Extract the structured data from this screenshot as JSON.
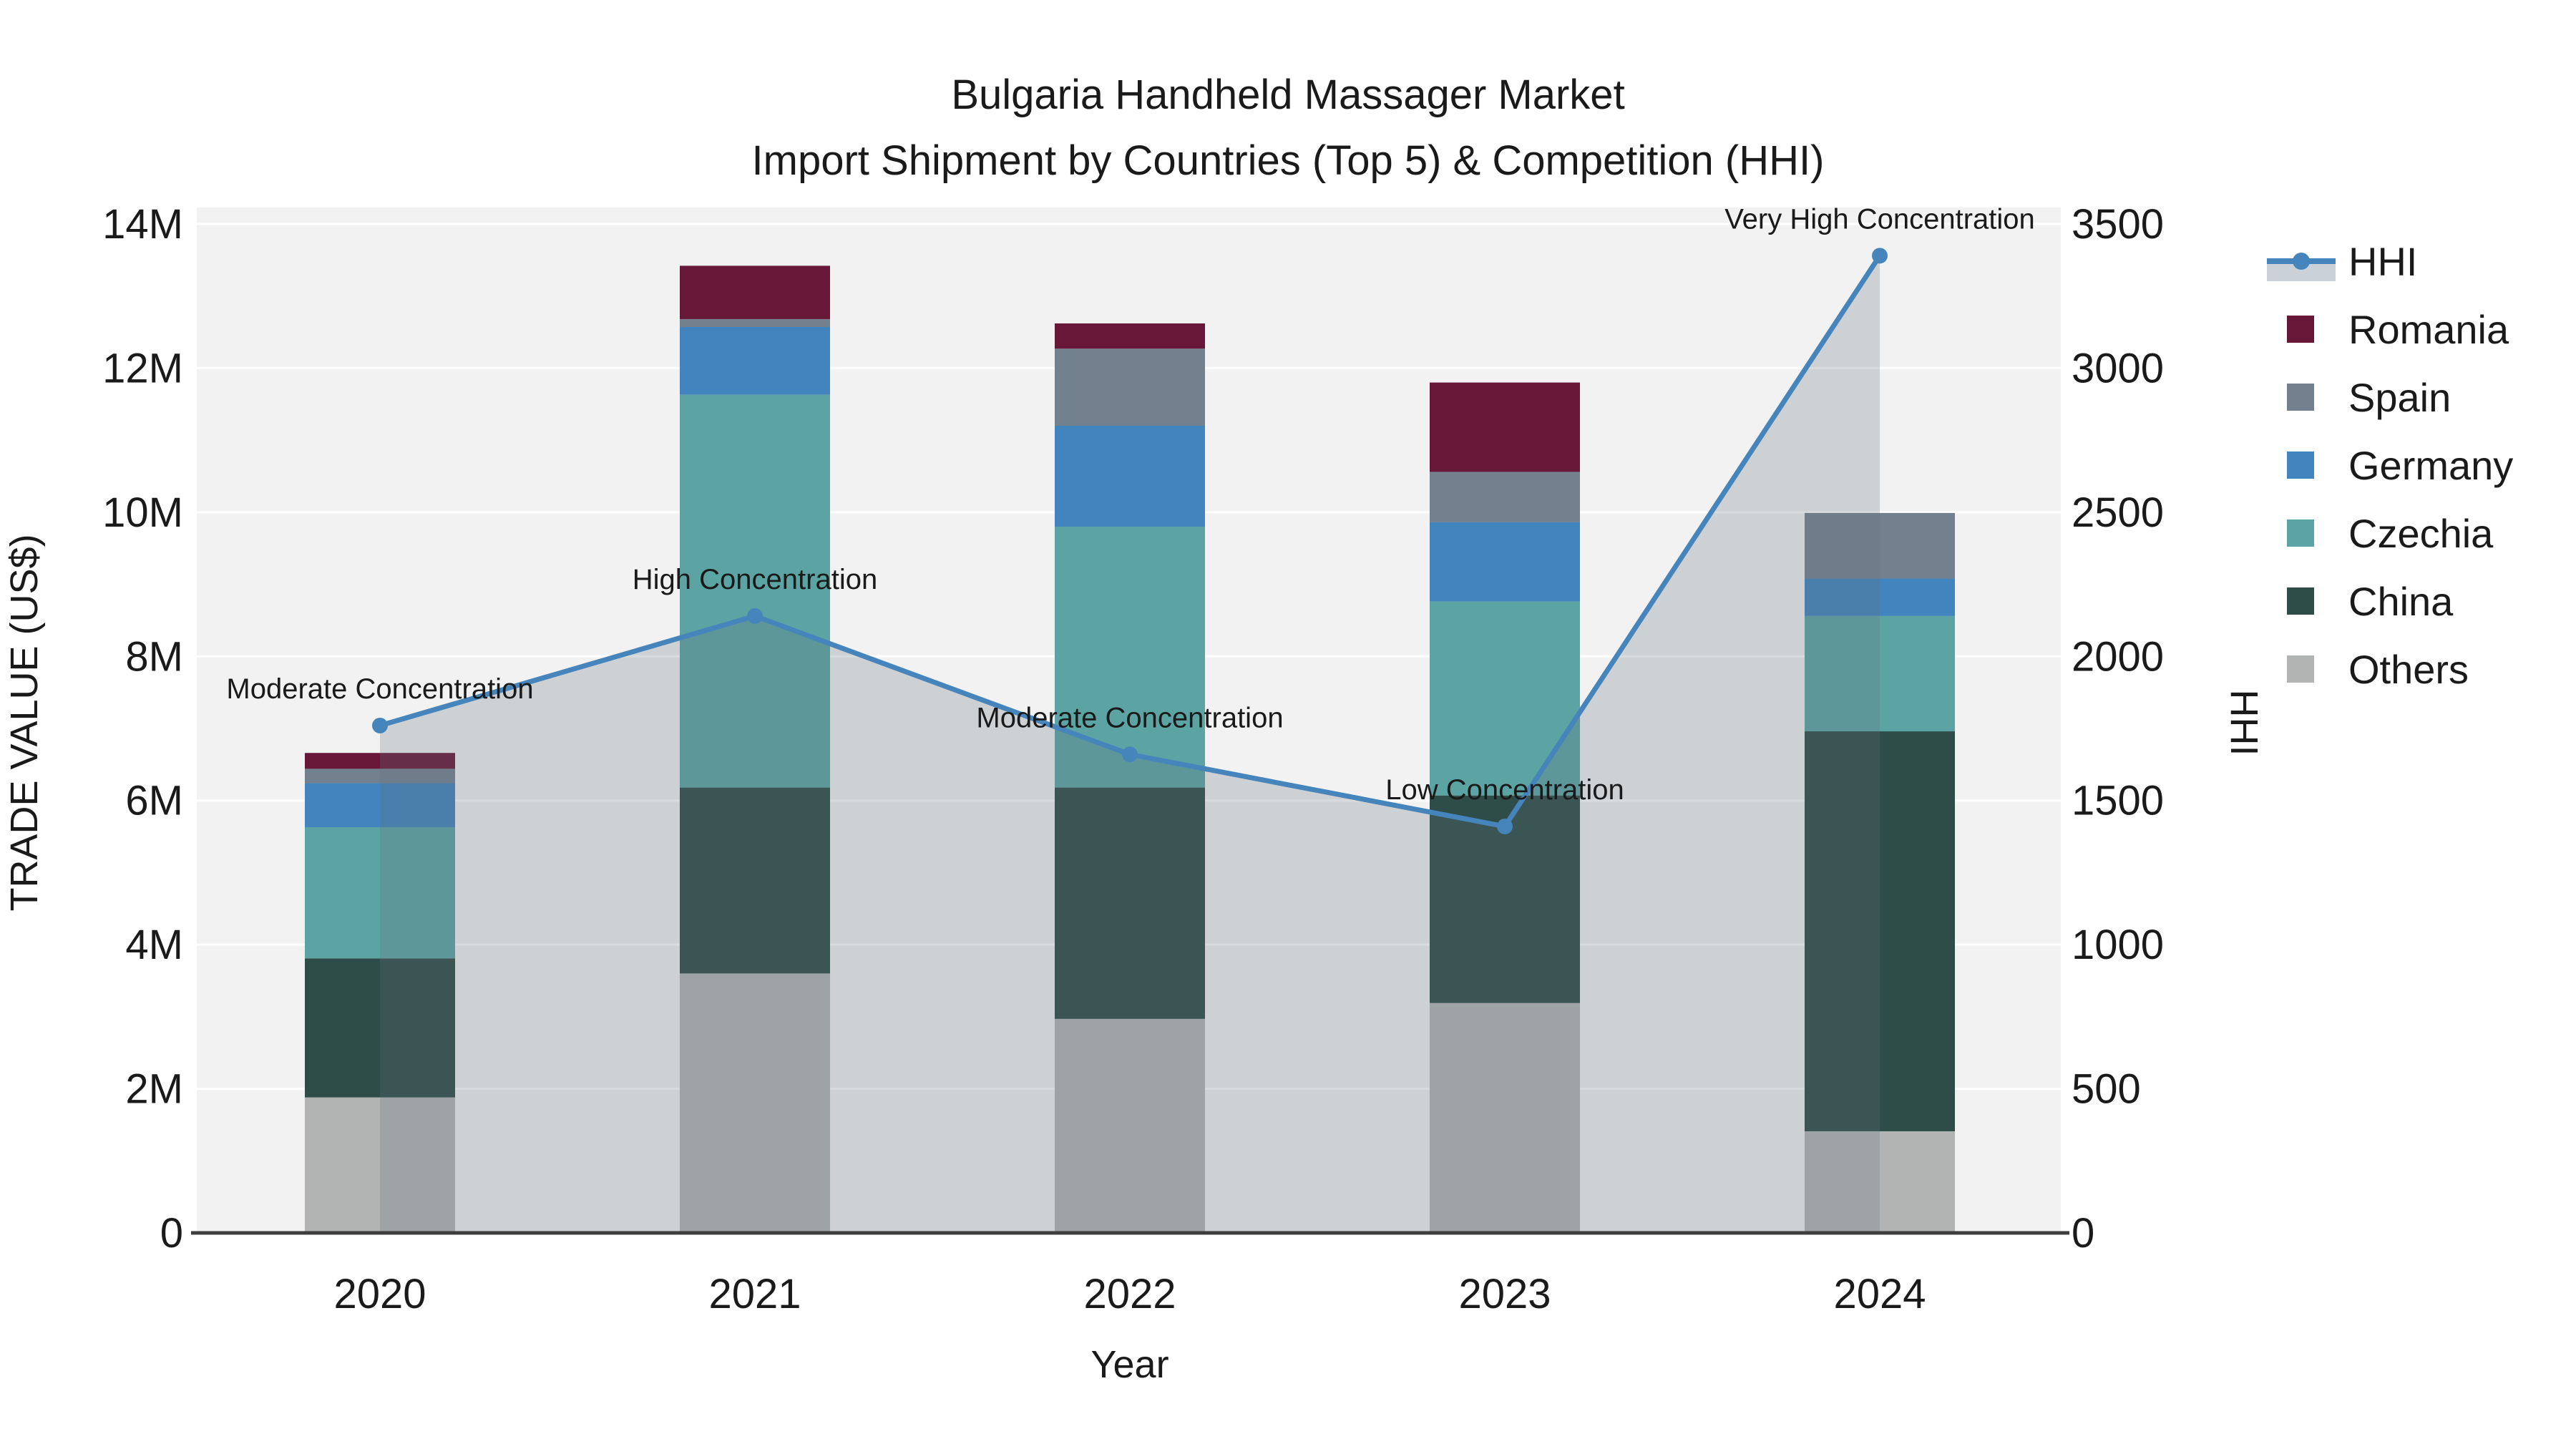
{
  "figure": {
    "title_line1": "Bulgaria Handheld Massager Market",
    "title_line2": "Import Shipment by Countries (Top 5) & Competition (HHI)"
  },
  "axes": {
    "x_title": "Year",
    "y_left_title": "TRADE VALUE (US$)",
    "y_right_title": "HHI",
    "y_left_ticks": [
      "0",
      "2M",
      "4M",
      "6M",
      "8M",
      "10M",
      "12M",
      "14M"
    ],
    "y_right_ticks": [
      "0",
      "500",
      "1000",
      "1500",
      "2000",
      "2500",
      "3000",
      "3500"
    ],
    "x_ticks": [
      "2020",
      "2021",
      "2022",
      "2023",
      "2024"
    ]
  },
  "legend": {
    "position": "right",
    "items": [
      {
        "label": "HHI",
        "type": "line-area",
        "color": "#4685bc",
        "area_color": "#cbd1d9"
      },
      {
        "label": "Romania",
        "type": "swatch",
        "color": "#671839"
      },
      {
        "label": "Spain",
        "type": "swatch",
        "color": "#73818f"
      },
      {
        "label": "Germany",
        "type": "swatch",
        "color": "#4284bd"
      },
      {
        "label": "Czechia",
        "type": "swatch",
        "color": "#5ca4a3"
      },
      {
        "label": "China",
        "type": "swatch",
        "color": "#2e4d48"
      },
      {
        "label": "Others",
        "type": "swatch",
        "color": "#b2b4b3"
      }
    ]
  },
  "chart_data": {
    "type": "combo-stacked-bar-and-line",
    "title": "Bulgaria Handheld Massager Market — Import Shipment by Countries (Top 5) & Competition (HHI)",
    "categories": [
      "2020",
      "2021",
      "2022",
      "2023",
      "2024"
    ],
    "unit_left": "US$ (millions)",
    "unit_right": "HHI index",
    "ylim_left_musd": [
      0,
      14
    ],
    "ylim_right_hhi": [
      0,
      3500
    ],
    "grid": true,
    "stack_order_bottom_to_top": [
      "Others",
      "China",
      "Czechia",
      "Germany",
      "Spain",
      "Romania"
    ],
    "series": [
      {
        "name": "Others",
        "color": "#b2b4b3",
        "values_musd": [
          1.88,
          3.6,
          2.97,
          3.19,
          1.41
        ]
      },
      {
        "name": "China",
        "color": "#2e4d48",
        "values_musd": [
          1.93,
          2.58,
          3.21,
          2.88,
          5.55
        ]
      },
      {
        "name": "Czechia",
        "color": "#5ca4a3",
        "values_musd": [
          1.82,
          5.45,
          3.62,
          2.69,
          1.6
        ]
      },
      {
        "name": "Germany",
        "color": "#4284bd",
        "values_musd": [
          0.61,
          0.94,
          1.4,
          1.1,
          0.52
        ]
      },
      {
        "name": "Spain",
        "color": "#73818f",
        "values_musd": [
          0.2,
          0.11,
          1.07,
          0.7,
          0.91
        ]
      },
      {
        "name": "Romania",
        "color": "#671839",
        "values_musd": [
          0.22,
          0.74,
          0.35,
          1.24,
          0.0
        ]
      }
    ],
    "bar_totals_musd": [
      6.66,
      13.42,
      12.62,
      11.8,
      9.99
    ],
    "hhi_line": {
      "name": "HHI",
      "axis": "right",
      "color": "#4685bc",
      "area_overlay_color_rgba": "rgba(100,110,124,0.25)",
      "values": [
        1760,
        2140,
        1660,
        1410,
        3390
      ]
    },
    "annotations": [
      {
        "category": "2020",
        "text": "Moderate Concentration"
      },
      {
        "category": "2021",
        "text": "High Concentration"
      },
      {
        "category": "2022",
        "text": "Moderate Concentration"
      },
      {
        "category": "2023",
        "text": "Low Concentration"
      },
      {
        "category": "2024",
        "text": "Very High Concentration"
      }
    ]
  },
  "colors": {
    "plot_background": "#f2f2f2",
    "figure_background": "#ffffff",
    "gridline": "#ffffff",
    "axis_line": "#3d3d3d",
    "text": "#1a1a1a"
  }
}
